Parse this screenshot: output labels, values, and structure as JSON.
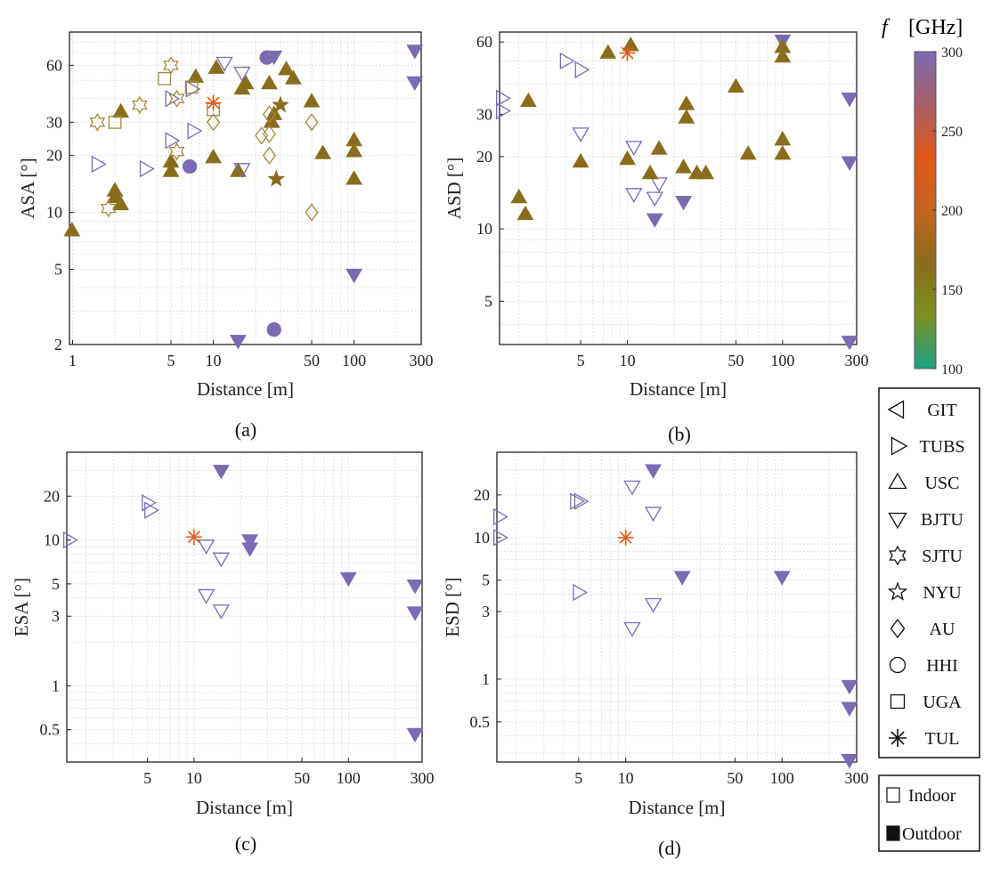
{
  "colorbar": {
    "title_f": "f",
    "title_unit": "[GHz]",
    "min": 100,
    "max": 300,
    "ticks": [
      100,
      150,
      200,
      250,
      300
    ],
    "stops": [
      "#1aa386",
      "#7d8f22",
      "#8a6d1c",
      "#c66422",
      "#e1581a",
      "#a85f67",
      "#7b6bb3"
    ]
  },
  "colors": {
    "f140": "#8a6d1c",
    "f200": "#e1581a",
    "f300": "#7b6bb3",
    "f140_light": "#a08a3c"
  },
  "legend": {
    "labs": [
      {
        "label": "GIT",
        "marker": "tri-left"
      },
      {
        "label": "TUBS",
        "marker": "tri-right"
      },
      {
        "label": "USC",
        "marker": "tri-up"
      },
      {
        "label": "BJTU",
        "marker": "tri-down"
      },
      {
        "label": "SJTU",
        "marker": "hexagram"
      },
      {
        "label": "NYU",
        "marker": "pentagram"
      },
      {
        "label": "AU",
        "marker": "diamond"
      },
      {
        "label": "HHI",
        "marker": "circle"
      },
      {
        "label": "UGA",
        "marker": "square"
      },
      {
        "label": "TUL",
        "marker": "asterisk"
      }
    ],
    "env": [
      {
        "label": "Indoor",
        "filled": false
      },
      {
        "label": "Outdoor",
        "filled": true
      }
    ]
  },
  "chart_data": [
    {
      "panel_label": "(a)",
      "type": "scatter",
      "xlabel": "Distance [m]",
      "ylabel": "ASA [°]",
      "xscale": "log",
      "yscale": "log",
      "xlim": [
        0.95,
        300
      ],
      "ylim": [
        2,
        90
      ],
      "xticks": [
        1,
        5,
        10,
        50,
        100,
        300
      ],
      "yticks": [
        2,
        5,
        10,
        20,
        30,
        60
      ],
      "grid": true,
      "points": [
        {
          "x": 0.99,
          "y": 8,
          "m": "tri-up",
          "fill": true,
          "f": 140
        },
        {
          "x": 2.2,
          "y": 34,
          "m": "tri-up",
          "fill": true,
          "f": 140
        },
        {
          "x": 2.0,
          "y": 13,
          "m": "tri-up",
          "fill": true,
          "f": 140
        },
        {
          "x": 2.0,
          "y": 12,
          "m": "tri-up",
          "fill": true,
          "f": 140
        },
        {
          "x": 2.2,
          "y": 11,
          "m": "tri-up",
          "fill": true,
          "f": 140
        },
        {
          "x": 5.0,
          "y": 16.5,
          "m": "tri-up",
          "fill": true,
          "f": 140
        },
        {
          "x": 5.0,
          "y": 18.5,
          "m": "tri-up",
          "fill": true,
          "f": 140
        },
        {
          "x": 7.5,
          "y": 52,
          "m": "tri-up",
          "fill": true,
          "f": 140
        },
        {
          "x": 10.5,
          "y": 58,
          "m": "tri-up",
          "fill": true,
          "f": 140
        },
        {
          "x": 10.0,
          "y": 19.5,
          "m": "tri-up",
          "fill": true,
          "f": 140
        },
        {
          "x": 15,
          "y": 16.5,
          "m": "tri-up",
          "fill": true,
          "f": 140
        },
        {
          "x": 16,
          "y": 45,
          "m": "tri-up",
          "fill": true,
          "f": 140
        },
        {
          "x": 17,
          "y": 48,
          "m": "tri-up",
          "fill": true,
          "f": 140
        },
        {
          "x": 25,
          "y": 48,
          "m": "tri-up",
          "fill": true,
          "f": 140
        },
        {
          "x": 26,
          "y": 30,
          "m": "tri-up",
          "fill": true,
          "f": 140
        },
        {
          "x": 27,
          "y": 33,
          "m": "tri-up",
          "fill": true,
          "f": 140
        },
        {
          "x": 33,
          "y": 57,
          "m": "tri-up",
          "fill": true,
          "f": 140
        },
        {
          "x": 37,
          "y": 51,
          "m": "tri-up",
          "fill": true,
          "f": 140
        },
        {
          "x": 50,
          "y": 38.5,
          "m": "tri-up",
          "fill": true,
          "f": 140
        },
        {
          "x": 60,
          "y": 20.5,
          "m": "tri-up",
          "fill": true,
          "f": 140
        },
        {
          "x": 100,
          "y": 24,
          "m": "tri-up",
          "fill": true,
          "f": 140
        },
        {
          "x": 100,
          "y": 21,
          "m": "tri-up",
          "fill": true,
          "f": 140
        },
        {
          "x": 100,
          "y": 15,
          "m": "tri-up",
          "fill": true,
          "f": 140
        },
        {
          "x": 1.5,
          "y": 18,
          "m": "tri-right",
          "fill": false,
          "f": 300
        },
        {
          "x": 3.3,
          "y": 17,
          "m": "tri-right",
          "fill": false,
          "f": 300
        },
        {
          "x": 5.0,
          "y": 40,
          "m": "tri-right",
          "fill": false,
          "f": 300
        },
        {
          "x": 5.0,
          "y": 24,
          "m": "tri-right",
          "fill": false,
          "f": 300
        },
        {
          "x": 7.2,
          "y": 27,
          "m": "tri-right",
          "fill": false,
          "f": 300
        },
        {
          "x": 7.0,
          "y": 45,
          "m": "tri-right",
          "fill": false,
          "f": 300
        },
        {
          "x": 12,
          "y": 62,
          "m": "tri-down",
          "fill": false,
          "f": 300
        },
        {
          "x": 16,
          "y": 55,
          "m": "tri-down",
          "fill": false,
          "f": 300
        },
        {
          "x": 16,
          "y": 17,
          "m": "tri-down",
          "fill": false,
          "f": 300
        },
        {
          "x": 15,
          "y": 2.1,
          "m": "tri-down",
          "fill": true,
          "f": 300
        },
        {
          "x": 27,
          "y": 67,
          "m": "tri-down",
          "fill": true,
          "f": 300
        },
        {
          "x": 100,
          "y": 4.7,
          "m": "tri-down",
          "fill": true,
          "f": 300
        },
        {
          "x": 270,
          "y": 72,
          "m": "tri-down",
          "fill": true,
          "f": 300
        },
        {
          "x": 270,
          "y": 49,
          "m": "tri-down",
          "fill": true,
          "f": 300
        },
        {
          "x": 6.8,
          "y": 17.5,
          "m": "circle",
          "fill": true,
          "f": 300
        },
        {
          "x": 24,
          "y": 66,
          "m": "circle",
          "fill": true,
          "f": 300
        },
        {
          "x": 27,
          "y": 2.4,
          "m": "circle",
          "fill": true,
          "f": 300
        },
        {
          "x": 1.5,
          "y": 30,
          "m": "hexagram",
          "fill": false,
          "f": 140
        },
        {
          "x": 3.0,
          "y": 37,
          "m": "hexagram",
          "fill": false,
          "f": 140
        },
        {
          "x": 1.8,
          "y": 10.5,
          "m": "hexagram",
          "fill": false,
          "f": 140
        },
        {
          "x": 5.0,
          "y": 60,
          "m": "hexagram",
          "fill": false,
          "f": 140
        },
        {
          "x": 5.5,
          "y": 40,
          "m": "hexagram",
          "fill": false,
          "f": 140
        },
        {
          "x": 5.5,
          "y": 21,
          "m": "hexagram",
          "fill": false,
          "f": 140
        },
        {
          "x": 28,
          "y": 15,
          "m": "pentagram",
          "fill": true,
          "f": 140
        },
        {
          "x": 30,
          "y": 37,
          "m": "pentagram",
          "fill": true,
          "f": 140
        },
        {
          "x": 10,
          "y": 30,
          "m": "diamond",
          "fill": false,
          "f": 140
        },
        {
          "x": 22,
          "y": 25.5,
          "m": "diamond",
          "fill": false,
          "f": 140
        },
        {
          "x": 25,
          "y": 33,
          "m": "diamond",
          "fill": false,
          "f": 140
        },
        {
          "x": 25,
          "y": 26,
          "m": "diamond",
          "fill": false,
          "f": 140
        },
        {
          "x": 25,
          "y": 20,
          "m": "diamond",
          "fill": false,
          "f": 140
        },
        {
          "x": 50,
          "y": 30,
          "m": "diamond",
          "fill": false,
          "f": 140
        },
        {
          "x": 50,
          "y": 10,
          "m": "diamond",
          "fill": false,
          "f": 140
        },
        {
          "x": 2.0,
          "y": 30,
          "m": "square",
          "fill": false,
          "f": 140
        },
        {
          "x": 4.5,
          "y": 51,
          "m": "square",
          "fill": false,
          "f": 140
        },
        {
          "x": 7.0,
          "y": 46,
          "m": "square",
          "fill": false,
          "f": 140
        },
        {
          "x": 10,
          "y": 35,
          "m": "square",
          "fill": false,
          "f": 140
        },
        {
          "x": 10,
          "y": 38,
          "m": "asterisk",
          "fill": true,
          "f": 200
        }
      ]
    },
    {
      "panel_label": "(b)",
      "type": "scatter",
      "xlabel": "Distance [m]",
      "ylabel": "ASD [°]",
      "xscale": "log",
      "yscale": "log",
      "xlim": [
        1.5,
        300
      ],
      "ylim": [
        3.3,
        66
      ],
      "xticks": [
        5,
        10,
        50,
        100,
        300
      ],
      "yticks": [
        5,
        10,
        20,
        30,
        60
      ],
      "grid": true,
      "points": [
        {
          "x": 1.55,
          "y": 35,
          "m": "tri-right",
          "fill": false,
          "f": 300
        },
        {
          "x": 1.55,
          "y": 31,
          "m": "tri-right",
          "fill": false,
          "f": 300
        },
        {
          "x": 4.0,
          "y": 50,
          "m": "tri-right",
          "fill": false,
          "f": 300
        },
        {
          "x": 5.0,
          "y": 46,
          "m": "tri-right",
          "fill": false,
          "f": 300
        },
        {
          "x": 5.0,
          "y": 25,
          "m": "tri-down",
          "fill": false,
          "f": 300
        },
        {
          "x": 11,
          "y": 22,
          "m": "tri-down",
          "fill": false,
          "f": 300
        },
        {
          "x": 11,
          "y": 14,
          "m": "tri-down",
          "fill": false,
          "f": 300
        },
        {
          "x": 15,
          "y": 13.5,
          "m": "tri-down",
          "fill": false,
          "f": 300
        },
        {
          "x": 16,
          "y": 15.5,
          "m": "tri-down",
          "fill": false,
          "f": 300
        },
        {
          "x": 15,
          "y": 11,
          "m": "tri-down",
          "fill": true,
          "f": 300
        },
        {
          "x": 23,
          "y": 13,
          "m": "tri-down",
          "fill": true,
          "f": 300
        },
        {
          "x": 100,
          "y": 61,
          "m": "tri-down",
          "fill": true,
          "f": 300
        },
        {
          "x": 270,
          "y": 35,
          "m": "tri-down",
          "fill": true,
          "f": 300
        },
        {
          "x": 270,
          "y": 19,
          "m": "tri-down",
          "fill": true,
          "f": 300
        },
        {
          "x": 270,
          "y": 3.4,
          "m": "tri-down",
          "fill": true,
          "f": 300
        },
        {
          "x": 2.0,
          "y": 13.5,
          "m": "tri-up",
          "fill": true,
          "f": 140
        },
        {
          "x": 2.2,
          "y": 11.5,
          "m": "tri-up",
          "fill": true,
          "f": 140
        },
        {
          "x": 2.3,
          "y": 34,
          "m": "tri-up",
          "fill": true,
          "f": 140
        },
        {
          "x": 5.0,
          "y": 19,
          "m": "tri-up",
          "fill": true,
          "f": 140
        },
        {
          "x": 7.5,
          "y": 54,
          "m": "tri-up",
          "fill": true,
          "f": 140
        },
        {
          "x": 10.5,
          "y": 58,
          "m": "tri-up",
          "fill": true,
          "f": 140
        },
        {
          "x": 10,
          "y": 19.5,
          "m": "tri-up",
          "fill": true,
          "f": 140
        },
        {
          "x": 14,
          "y": 17,
          "m": "tri-up",
          "fill": true,
          "f": 140
        },
        {
          "x": 16,
          "y": 21.5,
          "m": "tri-up",
          "fill": true,
          "f": 140
        },
        {
          "x": 23,
          "y": 18,
          "m": "tri-up",
          "fill": true,
          "f": 140
        },
        {
          "x": 24,
          "y": 33,
          "m": "tri-up",
          "fill": true,
          "f": 140
        },
        {
          "x": 24,
          "y": 29,
          "m": "tri-up",
          "fill": true,
          "f": 140
        },
        {
          "x": 28,
          "y": 17,
          "m": "tri-up",
          "fill": true,
          "f": 140
        },
        {
          "x": 32,
          "y": 17,
          "m": "tri-up",
          "fill": true,
          "f": 140
        },
        {
          "x": 50,
          "y": 39,
          "m": "tri-up",
          "fill": true,
          "f": 140
        },
        {
          "x": 60,
          "y": 20.5,
          "m": "tri-up",
          "fill": true,
          "f": 140
        },
        {
          "x": 100,
          "y": 57,
          "m": "tri-up",
          "fill": true,
          "f": 140
        },
        {
          "x": 100,
          "y": 52,
          "m": "tri-up",
          "fill": true,
          "f": 140
        },
        {
          "x": 100,
          "y": 23.5,
          "m": "tri-up",
          "fill": true,
          "f": 140
        },
        {
          "x": 100,
          "y": 20.5,
          "m": "tri-up",
          "fill": true,
          "f": 140
        },
        {
          "x": 10,
          "y": 54,
          "m": "asterisk",
          "fill": true,
          "f": 200
        }
      ]
    },
    {
      "panel_label": "(c)",
      "type": "scatter",
      "xlabel": "Distance [m]",
      "ylabel": "ESA [°]",
      "xscale": "log",
      "yscale": "log",
      "xlim": [
        1.5,
        300
      ],
      "ylim": [
        0.3,
        40
      ],
      "xticks": [
        5,
        10,
        50,
        100,
        300
      ],
      "yticks": [
        0.5,
        1,
        3,
        5,
        10,
        20
      ],
      "grid": true,
      "points": [
        {
          "x": 1.55,
          "y": 10,
          "m": "tri-right",
          "fill": false,
          "f": 300
        },
        {
          "x": 5.0,
          "y": 18,
          "m": "tri-right",
          "fill": false,
          "f": 300
        },
        {
          "x": 5.2,
          "y": 16,
          "m": "tri-right",
          "fill": false,
          "f": 300
        },
        {
          "x": 12,
          "y": 9.2,
          "m": "tri-down",
          "fill": false,
          "f": 300
        },
        {
          "x": 15,
          "y": 7.5,
          "m": "tri-down",
          "fill": false,
          "f": 300
        },
        {
          "x": 12,
          "y": 4.2,
          "m": "tri-down",
          "fill": false,
          "f": 300
        },
        {
          "x": 15,
          "y": 3.3,
          "m": "tri-down",
          "fill": false,
          "f": 300
        },
        {
          "x": 15,
          "y": 30,
          "m": "tri-down",
          "fill": true,
          "f": 300
        },
        {
          "x": 23,
          "y": 10,
          "m": "tri-down",
          "fill": true,
          "f": 300
        },
        {
          "x": 23,
          "y": 8.8,
          "m": "tri-down",
          "fill": true,
          "f": 300
        },
        {
          "x": 100,
          "y": 5.5,
          "m": "tri-down",
          "fill": true,
          "f": 300
        },
        {
          "x": 270,
          "y": 4.9,
          "m": "tri-down",
          "fill": true,
          "f": 300
        },
        {
          "x": 270,
          "y": 3.2,
          "m": "tri-down",
          "fill": true,
          "f": 300
        },
        {
          "x": 270,
          "y": 0.47,
          "m": "tri-down",
          "fill": true,
          "f": 300
        },
        {
          "x": 10,
          "y": 10.5,
          "m": "asterisk",
          "fill": true,
          "f": 200
        }
      ]
    },
    {
      "panel_label": "(d)",
      "type": "scatter",
      "xlabel": "Distance [m]",
      "ylabel": "ESD [°]",
      "xscale": "log",
      "yscale": "log",
      "xlim": [
        1.5,
        300
      ],
      "ylim": [
        0.26,
        40
      ],
      "xticks": [
        5,
        10,
        50,
        100,
        300
      ],
      "yticks": [
        0.5,
        1,
        3,
        5,
        10,
        20
      ],
      "grid": true,
      "points": [
        {
          "x": 1.55,
          "y": 14,
          "m": "tri-right",
          "fill": false,
          "f": 300
        },
        {
          "x": 1.55,
          "y": 10,
          "m": "tri-right",
          "fill": false,
          "f": 300
        },
        {
          "x": 4.8,
          "y": 18,
          "m": "tri-right",
          "fill": false,
          "f": 300
        },
        {
          "x": 5.1,
          "y": 18,
          "m": "tri-right",
          "fill": false,
          "f": 300
        },
        {
          "x": 5.0,
          "y": 4.1,
          "m": "tri-right",
          "fill": false,
          "f": 300
        },
        {
          "x": 11,
          "y": 23,
          "m": "tri-down",
          "fill": false,
          "f": 300
        },
        {
          "x": 15,
          "y": 15,
          "m": "tri-down",
          "fill": false,
          "f": 300
        },
        {
          "x": 15,
          "y": 3.4,
          "m": "tri-down",
          "fill": false,
          "f": 300
        },
        {
          "x": 11,
          "y": 2.3,
          "m": "tri-down",
          "fill": false,
          "f": 300
        },
        {
          "x": 15,
          "y": 30,
          "m": "tri-down",
          "fill": true,
          "f": 300
        },
        {
          "x": 23,
          "y": 5.3,
          "m": "tri-down",
          "fill": true,
          "f": 300
        },
        {
          "x": 100,
          "y": 5.3,
          "m": "tri-down",
          "fill": true,
          "f": 300
        },
        {
          "x": 270,
          "y": 0.9,
          "m": "tri-down",
          "fill": true,
          "f": 300
        },
        {
          "x": 270,
          "y": 0.63,
          "m": "tri-down",
          "fill": true,
          "f": 300
        },
        {
          "x": 270,
          "y": 0.27,
          "m": "tri-down",
          "fill": true,
          "f": 300
        },
        {
          "x": 10,
          "y": 10,
          "m": "asterisk",
          "fill": true,
          "f": 200
        }
      ]
    }
  ]
}
